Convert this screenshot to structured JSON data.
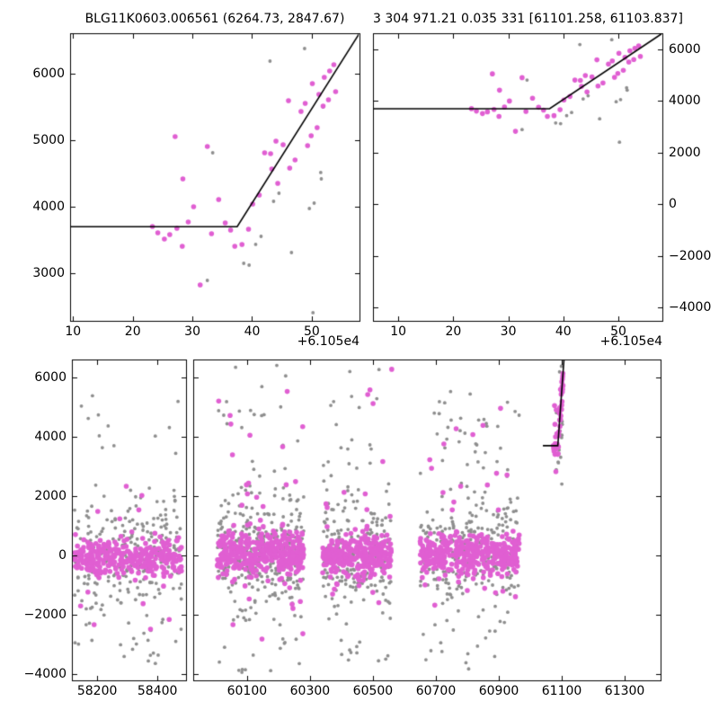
{
  "figure": {
    "colors": {
      "magenta_series": "#e05fd2",
      "gray_series": "#8e8e8e",
      "fit_line": "#000000",
      "frame": "#000000",
      "background": "#ffffff"
    }
  },
  "chart_data": {
    "type": "scatter",
    "shared_series": {
      "event_magenta": [
        [
          61077.1,
          5054
        ],
        [
          61082.5,
          4906
        ],
        [
          61078.4,
          4419
        ],
        [
          61080.2,
          4000
        ],
        [
          61084.4,
          4108
        ],
        [
          61079.3,
          3771
        ],
        [
          61073.3,
          3703
        ],
        [
          61074.2,
          3609
        ],
        [
          61075.3,
          3514
        ],
        [
          61076.2,
          3581
        ],
        [
          61077.4,
          3676
        ],
        [
          61078.3,
          3406
        ],
        [
          61081.3,
          2825
        ],
        [
          61083.2,
          3595
        ],
        [
          61085.5,
          3757
        ],
        [
          61086.4,
          3649
        ],
        [
          61087.1,
          3406
        ],
        [
          61088.3,
          3433
        ],
        [
          61089.4,
          3662
        ],
        [
          61090.1,
          4041
        ],
        [
          61091.2,
          4176
        ],
        [
          61092.1,
          4811
        ],
        [
          61093.1,
          4797
        ],
        [
          61093.3,
          4568
        ],
        [
          61094.0,
          4987
        ],
        [
          61094.3,
          4351
        ],
        [
          61095.2,
          4933
        ],
        [
          61096.1,
          5595
        ],
        [
          61096.3,
          4581
        ],
        [
          61097.2,
          4703
        ],
        [
          61098.2,
          5432
        ],
        [
          61098.9,
          5554
        ],
        [
          61099.3,
          4919
        ],
        [
          61099.9,
          5068
        ],
        [
          61100.1,
          5851
        ],
        [
          61100.9,
          5189
        ],
        [
          61101.2,
          5689
        ],
        [
          61101.9,
          5514
        ],
        [
          61102.1,
          5946
        ],
        [
          61102.8,
          5608
        ],
        [
          61103.0,
          6041
        ],
        [
          61103.7,
          6135
        ],
        [
          61104.0,
          5730
        ]
      ],
      "event_gray": [
        [
          61098.8,
          6378
        ],
        [
          61093.0,
          6189
        ],
        [
          61083.4,
          4811
        ],
        [
          61101.5,
          4514
        ],
        [
          61101.6,
          4419
        ],
        [
          61099.6,
          3973
        ],
        [
          61100.4,
          4054
        ],
        [
          61094.5,
          4203
        ],
        [
          61093.6,
          4081
        ],
        [
          61091.5,
          3554
        ],
        [
          61090.6,
          3433
        ],
        [
          61088.6,
          3149
        ],
        [
          61089.5,
          3122
        ],
        [
          61096.6,
          3311
        ],
        [
          61082.5,
          2892
        ],
        [
          61100.2,
          2406
        ],
        [
          61101.9,
          5500
        ]
      ]
    },
    "panels": [
      {
        "id": "top-left",
        "title": "BLG11K0603.006561 (6264.73, 2847.67)",
        "xlim": [
          61059.5,
          61108
        ],
        "ylim": [
          2284,
          6608
        ],
        "xticks": {
          "values": [
            61060,
            61070,
            61080,
            61090,
            61100
          ],
          "labels": [
            "10",
            "20",
            "30",
            "40",
            "50"
          ],
          "offset_label": "+6.105e4"
        },
        "yticks": {
          "side": "left",
          "values": [
            3000,
            4000,
            5000,
            6000
          ],
          "labels": [
            "3000",
            "4000",
            "5000",
            "6000"
          ]
        },
        "fit_line": [
          [
            61059.5,
            3700
          ],
          [
            61087.5,
            3700
          ],
          [
            61108,
            6608
          ]
        ],
        "series": [
          "event_gray",
          "event_magenta"
        ]
      },
      {
        "id": "top-right",
        "title": "3 304 971.21 0.035 331 [61101.258, 61103.837]",
        "xlim": [
          61055.4,
          61108
        ],
        "ylim": [
          -4523,
          6627
        ],
        "xticks": {
          "values": [
            61060,
            61070,
            61080,
            61090,
            61100
          ],
          "labels": [
            "10",
            "20",
            "30",
            "40",
            "50"
          ],
          "offset_label": "+6.105e4"
        },
        "yticks": {
          "side": "right",
          "values": [
            -4000,
            -2000,
            0,
            2000,
            4000,
            6000
          ],
          "labels": [
            "−4000",
            "−2000",
            "0",
            "2000",
            "4000",
            "6000"
          ]
        },
        "fit_line": [
          [
            61055.4,
            3700
          ],
          [
            61087.5,
            3700
          ],
          [
            61108,
            6627
          ]
        ],
        "series": [
          "event_gray",
          "event_magenta"
        ]
      },
      {
        "id": "bottom",
        "ylim": [
          -4212,
          6606
        ],
        "yticks": {
          "side": "left",
          "values": [
            -4000,
            -2000,
            0,
            2000,
            4000,
            6000
          ],
          "labels": [
            "−4000",
            "−2000",
            "0",
            "2000",
            "4000",
            "6000"
          ]
        },
        "segments": [
          {
            "xlim": [
              58116,
              58495
            ],
            "xticks": {
              "values": [
                58200,
                58400
              ],
              "labels": [
                "58200",
                "58400"
              ]
            }
          },
          {
            "xlim": [
              59929,
              61414
            ],
            "xticks": {
              "values": [
                60100,
                60300,
                60500,
                60700,
                60900,
                61100,
                61300
              ],
              "labels": [
                "60100",
                "60300",
                "60500",
                "60700",
                "60900",
                "61100",
                "61300"
              ]
            }
          }
        ],
        "fit_line": [
          [
            61040,
            3700
          ],
          [
            61087.5,
            3700
          ],
          [
            61107,
            6606
          ]
        ],
        "series": [
          "event_gray",
          "event_magenta"
        ],
        "clusters": [
          {
            "x_range": [
              58125,
              58480
            ],
            "gray": [
              {
                "n": 230,
                "dist": "gauss",
                "mean": 60,
                "sigma": 820
              },
              {
                "n": 55,
                "dist": "uniform",
                "range": [
                  -3400,
                  2400
                ]
              },
              {
                "n": 12,
                "dist": "uniform",
                "range": [
                  2400,
                  5700
                ]
              },
              {
                "n": 4,
                "dist": "uniform",
                "range": [
                  -3900,
                  -3300
                ]
              }
            ],
            "magenta": [
              {
                "n": 320,
                "dist": "gauss",
                "mean": -80,
                "sigma": 320
              },
              {
                "n": 20,
                "dist": "uniform",
                "range": [
                  -2800,
                  2400
                ]
              }
            ]
          },
          {
            "x_range": [
              60005,
              60280
            ],
            "gray": [
              {
                "n": 250,
                "dist": "gauss",
                "mean": 120,
                "sigma": 880
              },
              {
                "n": 80,
                "dist": "uniform",
                "range": [
                  -4000,
                  4400
                ]
              },
              {
                "n": 14,
                "dist": "uniform",
                "range": [
                  4400,
                  6450
                ]
              }
            ],
            "magenta": [
              {
                "n": 380,
                "dist": "gauss",
                "mean": 60,
                "sigma": 380
              },
              {
                "n": 28,
                "dist": "uniform",
                "range": [
                  -2900,
                  3500
                ]
              },
              {
                "n": 7,
                "dist": "uniform",
                "range": [
                  3500,
                  5600
                ]
              }
            ]
          },
          {
            "x_range": [
              60340,
              60560
            ],
            "gray": [
              {
                "n": 190,
                "dist": "gauss",
                "mean": 50,
                "sigma": 830
              },
              {
                "n": 55,
                "dist": "uniform",
                "range": [
                  -3600,
                  4200
                ]
              },
              {
                "n": 8,
                "dist": "uniform",
                "range": [
                  4200,
                  6300
                ]
              }
            ],
            "magenta": [
              {
                "n": 300,
                "dist": "gauss",
                "mean": -20,
                "sigma": 340
              },
              {
                "n": 18,
                "dist": "uniform",
                "range": [
                  -2400,
                  3300
                ]
              },
              {
                "n": 4,
                "dist": "uniform",
                "range": [
                  4800,
                  6500
                ]
              }
            ]
          },
          {
            "x_range": [
              60650,
              60965
            ],
            "gray": [
              {
                "n": 240,
                "dist": "gauss",
                "mean": 80,
                "sigma": 860
              },
              {
                "n": 75,
                "dist": "uniform",
                "range": [
                  -3900,
                  4600
                ]
              },
              {
                "n": 10,
                "dist": "uniform",
                "range": [
                  4600,
                  6300
                ]
              }
            ],
            "magenta": [
              {
                "n": 360,
                "dist": "gauss",
                "mean": 30,
                "sigma": 350
              },
              {
                "n": 24,
                "dist": "uniform",
                "range": [
                  -2600,
                  3400
                ]
              },
              {
                "n": 5,
                "dist": "uniform",
                "range": [
                  3400,
                  5200
                ]
              }
            ]
          }
        ]
      }
    ]
  }
}
